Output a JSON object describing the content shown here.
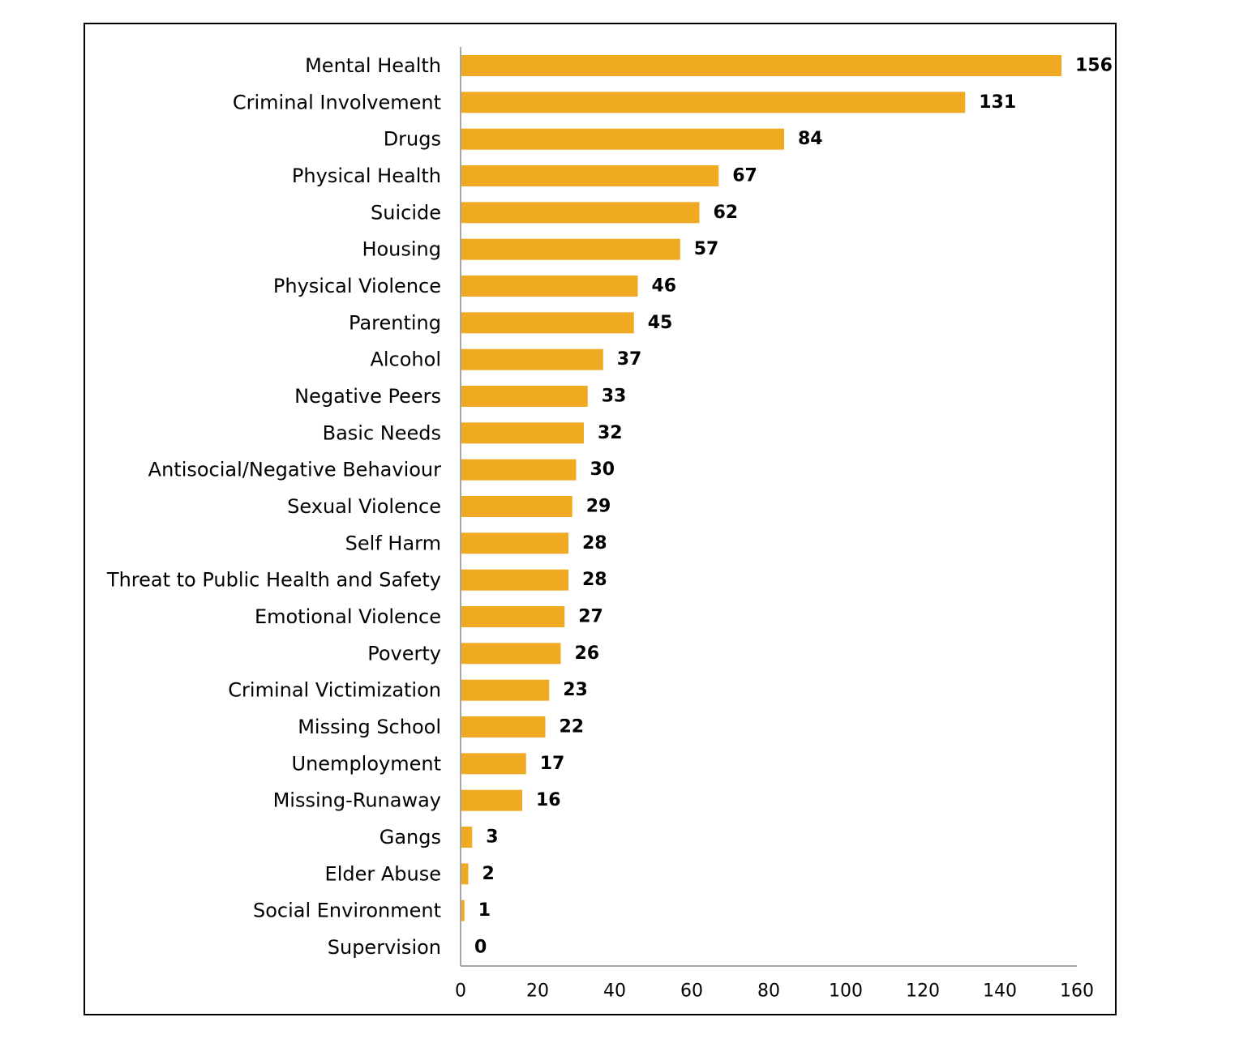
{
  "chart_data": {
    "type": "bar",
    "orientation": "horizontal",
    "categories": [
      "Mental Health",
      "Criminal Involvement",
      "Drugs",
      "Physical Health",
      "Suicide",
      "Housing",
      "Physical Violence",
      "Parenting",
      "Alcohol",
      "Negative Peers",
      "Basic Needs",
      "Antisocial/Negative Behaviour",
      "Sexual Violence",
      "Self Harm",
      "Threat to Public Health and Safety",
      "Emotional Violence",
      "Poverty",
      "Criminal Victimization",
      "Missing School",
      "Unemployment",
      "Missing-Runaway",
      "Gangs",
      "Elder Abuse",
      "Social Environment",
      "Supervision"
    ],
    "values": [
      156,
      131,
      84,
      67,
      62,
      57,
      46,
      45,
      37,
      33,
      32,
      30,
      29,
      28,
      28,
      27,
      26,
      23,
      22,
      17,
      16,
      3,
      2,
      1,
      0
    ],
    "xlim": [
      0,
      160
    ],
    "xticks": [
      0,
      20,
      40,
      60,
      80,
      100,
      120,
      140,
      160
    ],
    "grid": false,
    "legend": "none",
    "data_labels": true,
    "colors": {
      "bar": "#F0AA22",
      "axis": "#A6A6A6",
      "frame": "#000000"
    }
  }
}
